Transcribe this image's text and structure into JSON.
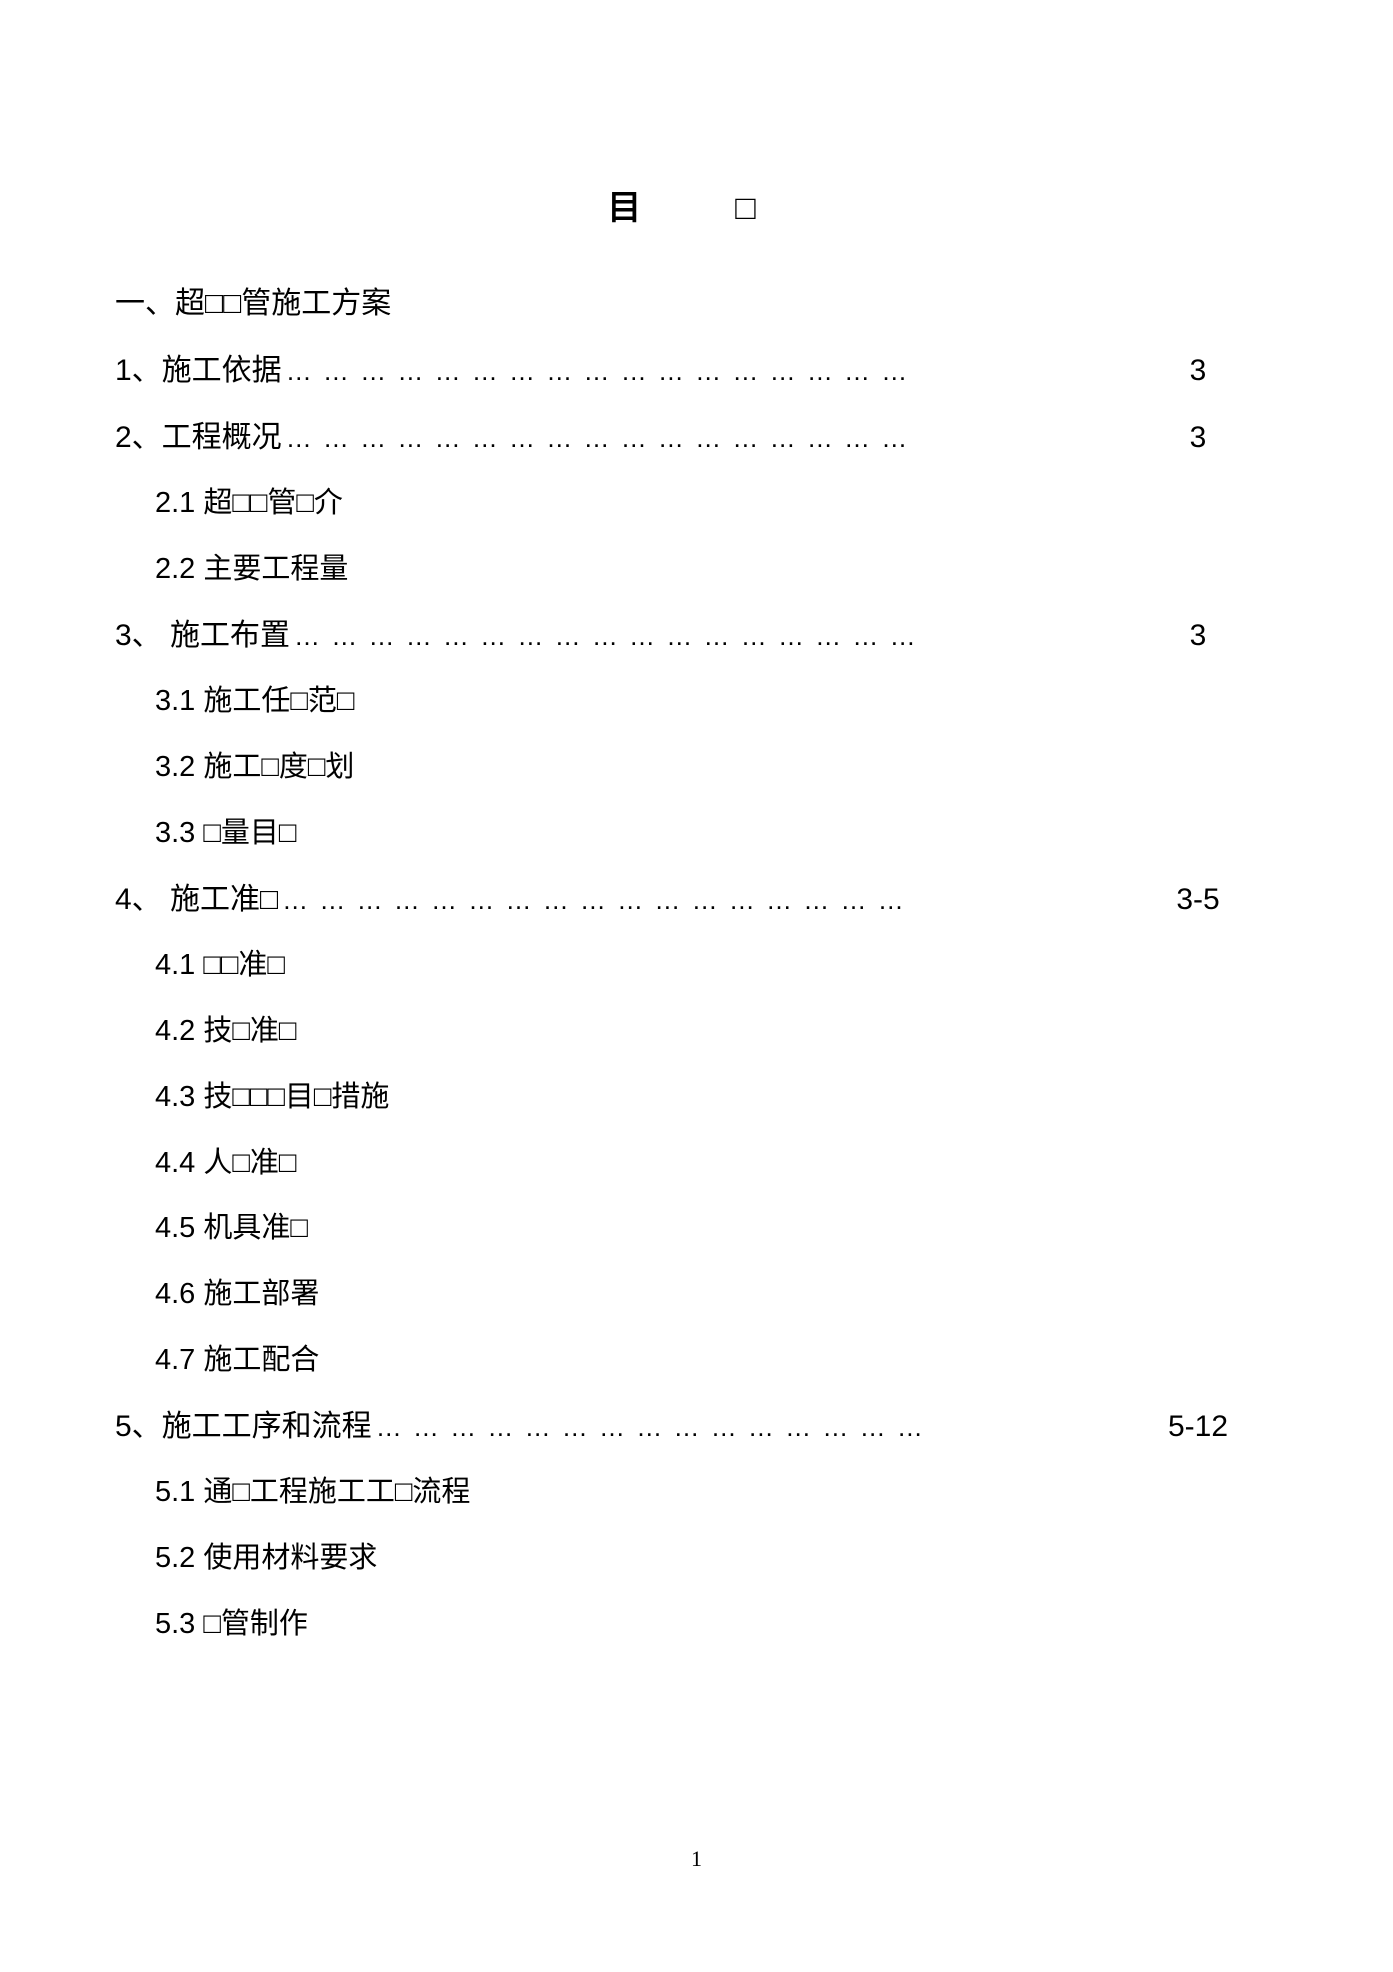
{
  "title": "目　□",
  "page_number": "1",
  "colors": {
    "background": "#ffffff",
    "text": "#000000"
  },
  "toc": [
    {
      "level": 0,
      "label": "一、超□□管施工方案",
      "leader": false,
      "page": ""
    },
    {
      "level": 1,
      "label": "1、施工依据",
      "leader": true,
      "page": "3"
    },
    {
      "level": 1,
      "label": "2、工程概况",
      "leader": true,
      "page": "3"
    },
    {
      "level": 2,
      "label": "2.1  超□□管□介",
      "leader": false,
      "page": ""
    },
    {
      "level": 2,
      "label": "2.2  主要工程量",
      "leader": false,
      "page": ""
    },
    {
      "level": 1,
      "label": "3、  施工布置",
      "leader": true,
      "page": "3"
    },
    {
      "level": 2,
      "label": "3.1  施工任□范□",
      "leader": false,
      "page": ""
    },
    {
      "level": 2,
      "label": "3.2  施工□度□划",
      "leader": false,
      "page": ""
    },
    {
      "level": 2,
      "label": "3.3  □量目□",
      "leader": false,
      "page": ""
    },
    {
      "level": 1,
      "label": "4、  施工准□",
      "leader": true,
      "page": "3-5"
    },
    {
      "level": 2,
      "label": "4.1  □□准□",
      "leader": false,
      "page": ""
    },
    {
      "level": 2,
      "label": "4.2  技□准□",
      "leader": false,
      "page": ""
    },
    {
      "level": 2,
      "label": "4.3  技□□□目□措施",
      "leader": false,
      "page": ""
    },
    {
      "level": 2,
      "label": "4.4  人□准□",
      "leader": false,
      "page": ""
    },
    {
      "level": 2,
      "label": "4.5  机具准□",
      "leader": false,
      "page": ""
    },
    {
      "level": 2,
      "label": "4.6  施工部署",
      "leader": false,
      "page": ""
    },
    {
      "level": 2,
      "label": "4.7  施工配合",
      "leader": false,
      "page": ""
    },
    {
      "level": 1,
      "label": "5、施工工序和流程",
      "leader": true,
      "page": "5-12"
    },
    {
      "level": 2,
      "label": "5.1  通□工程施工工□流程",
      "leader": false,
      "page": ""
    },
    {
      "level": 2,
      "label": "5.2  使用材料要求",
      "leader": false,
      "page": ""
    },
    {
      "level": 2,
      "label": "5.3  □管制作",
      "leader": false,
      "page": ""
    }
  ],
  "leader_text": "… … … … … … … … … … … … … … … … …",
  "leader_text_short": "… … … … … … … … … … … … … … …"
}
